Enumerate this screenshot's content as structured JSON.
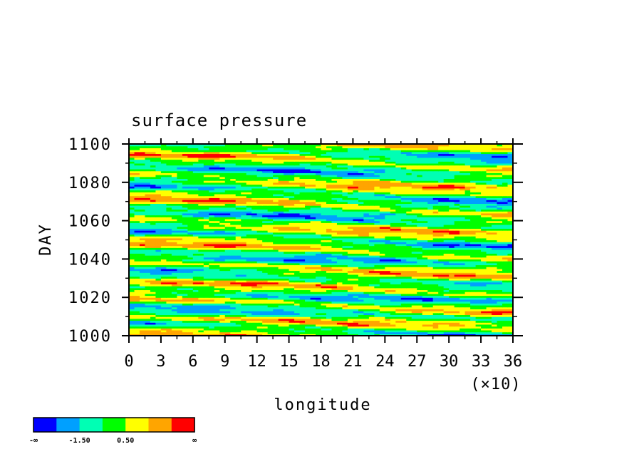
{
  "chart_data": {
    "type": "heatmap",
    "title": "surface pressure",
    "xlabel": "longitude",
    "ylabel": "DAY",
    "x_multiplier_label": "(×10)",
    "xlim": [
      0,
      36
    ],
    "ylim": [
      1000,
      1100
    ],
    "x_ticks": [
      0,
      3,
      6,
      9,
      12,
      15,
      18,
      21,
      24,
      27,
      30,
      33,
      36
    ],
    "y_ticks": [
      1000,
      1020,
      1040,
      1060,
      1080,
      1100
    ],
    "grid": false,
    "colorbar": {
      "colors": [
        "#0000ff",
        "#00a0ff",
        "#00ffb4",
        "#00ff00",
        "#ffff00",
        "#ffa500",
        "#ff0000"
      ],
      "tick_labels": [
        "-∞",
        "-1.50",
        "0.50",
        "∞"
      ],
      "position": "bottom-left"
    }
  }
}
